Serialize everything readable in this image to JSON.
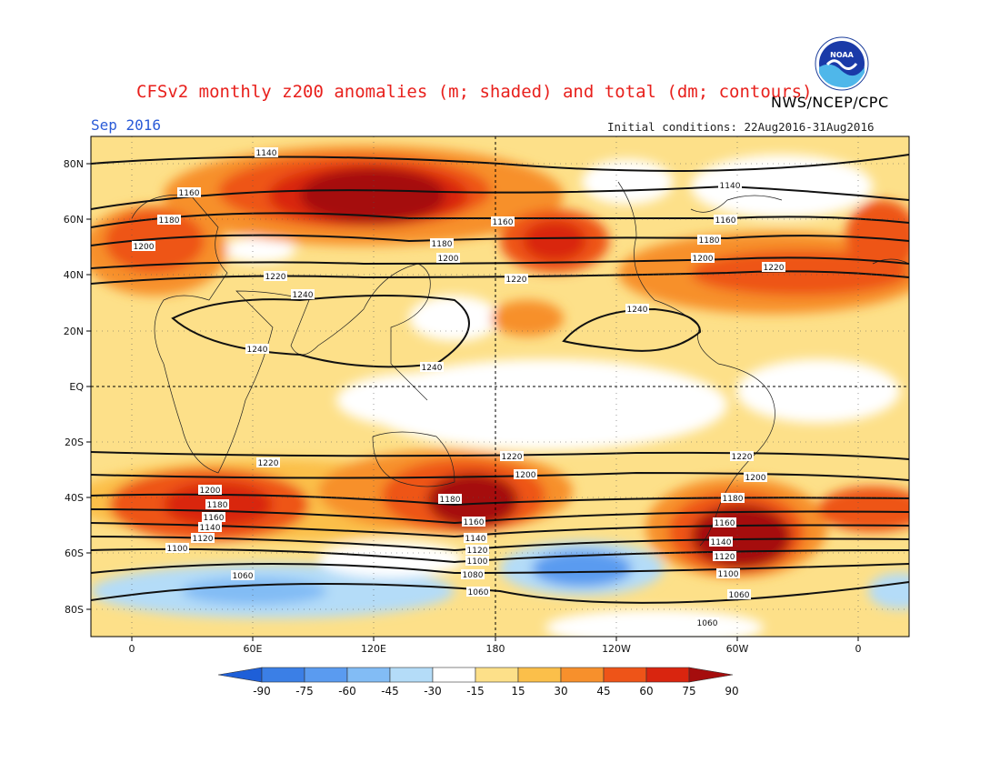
{
  "header": {
    "title": "CFSv2 monthly z200 anomalies (m; shaded) and total (dm; contours)",
    "agency": "NWS/NCEP/CPC",
    "month": "Sep 2016",
    "initial_conditions": "Initial conditions: 22Aug2016-31Aug2016",
    "logo_text": "NOAA"
  },
  "map": {
    "lat_labels": [
      "80N",
      "60N",
      "40N",
      "20N",
      "EQ",
      "20S",
      "40S",
      "60S",
      "80S"
    ],
    "lon_labels": [
      "0",
      "60E",
      "120E",
      "180",
      "120W",
      "60W",
      "0"
    ],
    "contour_labels": [
      "1140",
      "1160",
      "1180",
      "1200",
      "1220",
      "1240",
      "1100",
      "1120",
      "1080",
      "1060"
    ]
  },
  "colorbar": {
    "labels": [
      "-90",
      "-75",
      "-60",
      "-45",
      "-30",
      "-15",
      "15",
      "30",
      "45",
      "60",
      "75",
      "90"
    ],
    "colors": [
      "#1e5fd8",
      "#3b7fe6",
      "#5a9bf0",
      "#82bcf5",
      "#b4dcf8",
      "#ffffff",
      "#fde089",
      "#fbbf4a",
      "#f7902c",
      "#ee5418",
      "#d9250f",
      "#a50d0d"
    ]
  }
}
